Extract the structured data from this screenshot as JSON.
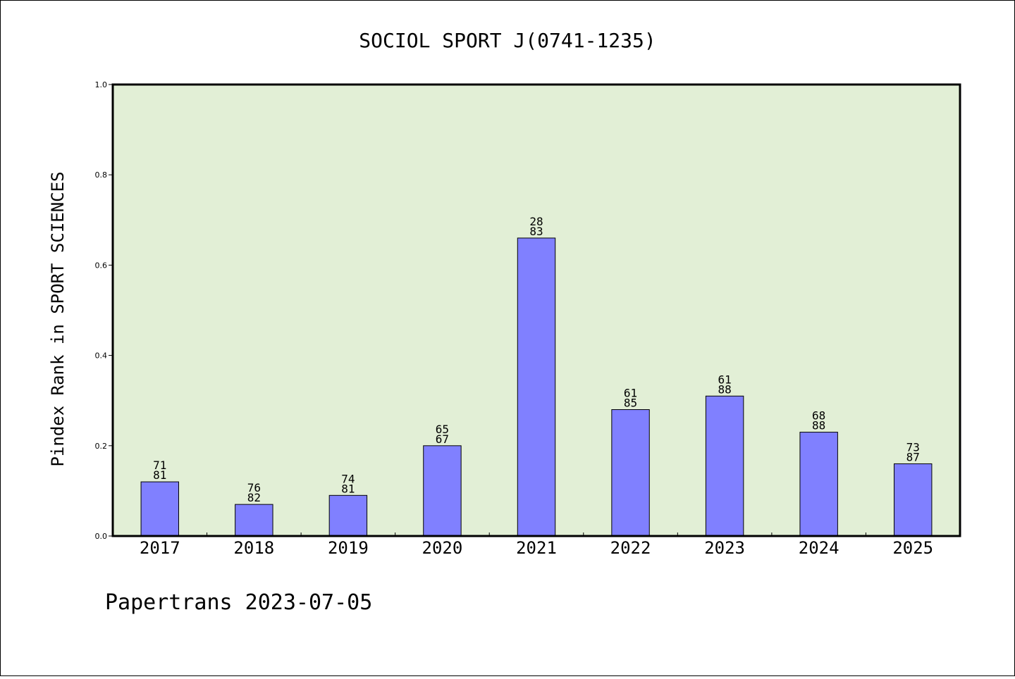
{
  "chart_data": {
    "type": "bar",
    "title": "SOCIOL SPORT J(0741-1235)",
    "xlabel": "",
    "ylabel": "Pindex Rank in SPORT SCIENCES",
    "footer": "Papertrans 2023-07-05",
    "categories": [
      "2017",
      "2018",
      "2019",
      "2020",
      "2021",
      "2022",
      "2023",
      "2024",
      "2025"
    ],
    "values": [
      0.12,
      0.07,
      0.09,
      0.2,
      0.66,
      0.28,
      0.31,
      0.23,
      0.16
    ],
    "bar_labels": [
      [
        "71",
        "81"
      ],
      [
        "76",
        "82"
      ],
      [
        "74",
        "81"
      ],
      [
        "65",
        "67"
      ],
      [
        "28",
        "83"
      ],
      [
        "61",
        "85"
      ],
      [
        "61",
        "88"
      ],
      [
        "68",
        "88"
      ],
      [
        "73",
        "87"
      ]
    ],
    "ylim": [
      0,
      1.0
    ],
    "yticks": [
      "0.0",
      "0.2",
      "0.4",
      "0.6",
      "0.8",
      "1.0"
    ],
    "grid": false,
    "colors": {
      "plot_background": "#e2efd6",
      "bar_fill": "#8080ff",
      "bar_stroke": "#000000"
    }
  }
}
